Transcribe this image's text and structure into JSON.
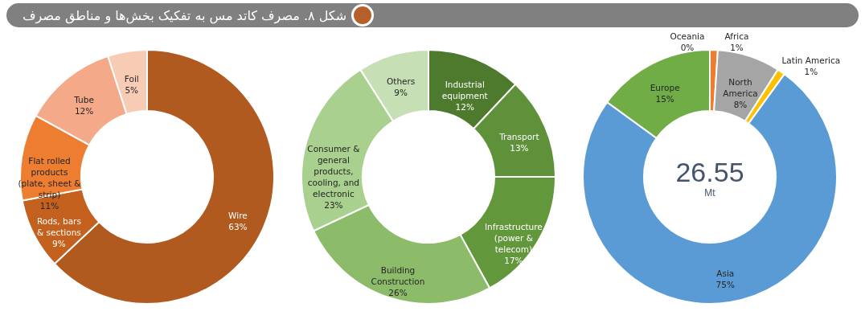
{
  "chart_data": [
    {
      "type": "donut",
      "title": "شکل ۸. مصرف کاتد مس به تفکیک بخش‌ها و مناطق مصرف",
      "categories": [
        "Wire",
        "Rods, bars & sections",
        "Flat rolled products (plate, sheet & strip)",
        "Tube",
        "Foil"
      ],
      "values": [
        63,
        9,
        11,
        12,
        5
      ],
      "value_labels": [
        "63%",
        "9%",
        "11%",
        "12%",
        "5%"
      ],
      "colors": [
        "#b05a20",
        "#c4611f",
        "#ed7d31",
        "#f4a988",
        "#f8cbb5"
      ]
    },
    {
      "type": "donut",
      "categories": [
        "Industrial equipment",
        "Transport",
        "Infrastructure (power & telecom)",
        "Building Construction",
        "Consumer & general products, cooling, and electronic",
        "Others"
      ],
      "values": [
        12,
        13,
        17,
        26,
        23,
        9
      ],
      "value_labels": [
        "12%",
        "13%",
        "17%",
        "26%",
        "23%",
        "9%"
      ],
      "colors": [
        "#4e7a2e",
        "#5e9139",
        "#62973c",
        "#8cbc6a",
        "#a9d08e",
        "#c6dfb5"
      ]
    },
    {
      "type": "donut",
      "categories": [
        "Africa",
        "North America",
        "Latin America",
        "Asia",
        "Europe",
        "Oceania"
      ],
      "values": [
        1,
        8,
        1,
        75,
        15,
        0
      ],
      "value_labels": [
        "1%",
        "8%",
        "1%",
        "75%",
        "15%",
        "0%"
      ],
      "colors": [
        "#ed7d31",
        "#a5a5a5",
        "#ffc000",
        "#5b9bd5",
        "#70ad47",
        "#4472c4"
      ],
      "annotations": [
        "26.55",
        "Mt"
      ]
    }
  ]
}
